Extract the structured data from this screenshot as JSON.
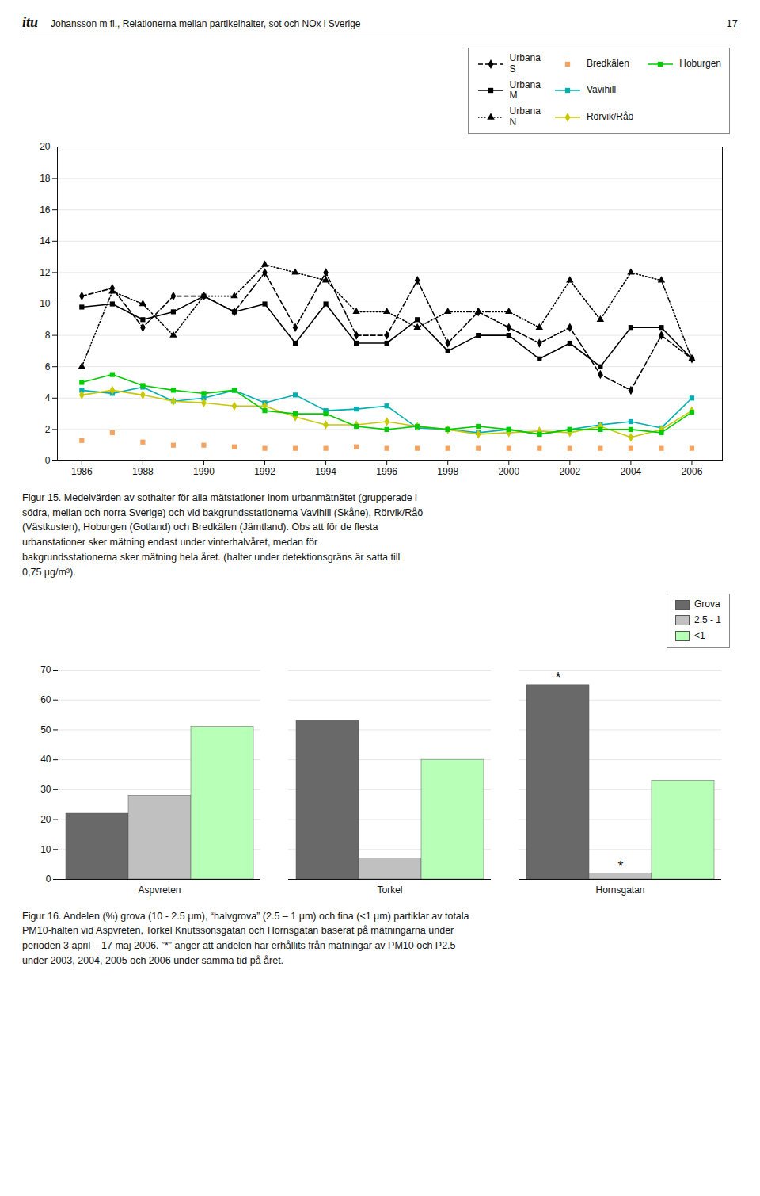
{
  "header": {
    "logo": "itu",
    "text": "Johansson m fl., Relationerna mellan partikelhalter, sot och NOx i Sverige",
    "page_number": "17"
  },
  "chart_data": [
    {
      "type": "line",
      "x": [
        1986,
        1987,
        1988,
        1989,
        1990,
        1991,
        1992,
        1993,
        1994,
        1995,
        1996,
        1997,
        1998,
        1999,
        2000,
        2001,
        2002,
        2003,
        2004,
        2005,
        2006
      ],
      "xlim": [
        1985.2,
        2007.0
      ],
      "xticks": [
        1986,
        1988,
        1990,
        1992,
        1994,
        1996,
        1998,
        2000,
        2002,
        2004,
        2006
      ],
      "ylim": [
        0,
        20
      ],
      "yticks": [
        0,
        2,
        4,
        6,
        8,
        10,
        12,
        14,
        16,
        18,
        20
      ],
      "grid": true,
      "legend": "upper right",
      "series": [
        {
          "name": "Urbana\nS",
          "color": "#000000",
          "marker": "diamond",
          "line_style": "dashed",
          "values": [
            10.5,
            11.0,
            8.5,
            10.5,
            10.5,
            9.5,
            12.0,
            8.5,
            12.0,
            8.0,
            8.0,
            11.5,
            7.5,
            9.5,
            8.5,
            7.5,
            8.5,
            5.5,
            4.5,
            8.0,
            6.5
          ]
        },
        {
          "name": "Urbana\nM",
          "color": "#000000",
          "marker": "square",
          "line_style": "solid",
          "values": [
            9.8,
            10.0,
            9.0,
            9.5,
            10.5,
            9.5,
            10.0,
            7.5,
            10.0,
            7.5,
            7.5,
            9.0,
            7.0,
            8.0,
            8.0,
            6.5,
            7.5,
            6.0,
            8.5,
            8.5,
            6.5
          ]
        },
        {
          "name": "Urbana\nN",
          "color": "#000000",
          "marker": "triangle",
          "line_style": "dotted",
          "values": [
            6.0,
            10.8,
            10.0,
            8.0,
            10.5,
            10.5,
            12.5,
            12.0,
            11.5,
            9.5,
            9.5,
            8.5,
            9.5,
            9.5,
            9.5,
            8.5,
            11.5,
            9.0,
            12.0,
            11.5,
            6.5
          ]
        },
        {
          "name": "Bredkälen",
          "color": "#f4a460",
          "marker": "square",
          "line_style": "none",
          "values": [
            1.3,
            1.8,
            1.2,
            1.0,
            1.0,
            0.9,
            0.8,
            0.8,
            0.8,
            0.9,
            0.8,
            0.8,
            0.8,
            0.8,
            0.8,
            0.8,
            0.8,
            0.8,
            0.8,
            0.8,
            0.8
          ]
        },
        {
          "name": "Vavihill",
          "color": "#00b0b0",
          "marker": "square",
          "line_style": "solid",
          "values": [
            4.5,
            4.3,
            4.7,
            3.8,
            4.0,
            4.5,
            3.7,
            4.2,
            3.2,
            3.3,
            3.5,
            2.1,
            2.0,
            1.8,
            2.0,
            1.7,
            2.0,
            2.3,
            2.5,
            2.1,
            4.0
          ]
        },
        {
          "name": "Rörvik/Råö",
          "color": "#c8c800",
          "marker": "diamond",
          "line_style": "solid",
          "values": [
            4.2,
            4.5,
            4.2,
            3.8,
            3.7,
            3.5,
            3.5,
            2.8,
            2.3,
            2.3,
            2.5,
            2.2,
            2.0,
            1.7,
            1.8,
            1.9,
            1.8,
            2.2,
            1.5,
            2.0,
            3.2
          ]
        },
        {
          "name": "Hoburgen",
          "color": "#00cc00",
          "marker": "square",
          "line_style": "solid",
          "values": [
            5.0,
            5.5,
            4.8,
            4.5,
            4.3,
            4.5,
            3.2,
            3.0,
            3.0,
            2.2,
            2.0,
            2.2,
            2.0,
            2.2,
            2.0,
            1.7,
            2.0,
            2.0,
            2.0,
            1.8,
            3.1
          ]
        }
      ],
      "caption": [
        "Figur 15. Medelvärden av sothalter för alla mätstationer inom urbanmätnätet (grupperade i",
        "södra, mellan och norra Sverige) och vid bakgrundsstationerna Vavihill (Skåne), Rörvik/Råö",
        "(Västkusten), Hoburgen (Gotland) och Bredkälen (Jämtland). Obs att för de flesta",
        "urbanstationer sker mätning endast under vinterhalvåret, medan för",
        "bakgrundsstationerna sker mätning hela året. (halter under detektionsgräns är satta till",
        "0,75 µg/m³)."
      ]
    },
    {
      "type": "bar",
      "categories": [
        "Aspvreten",
        "Torkel",
        "Hornsgatan"
      ],
      "ylim": [
        0,
        70
      ],
      "yticks": [
        0,
        10,
        20,
        30,
        40,
        50,
        60,
        70
      ],
      "grid": true,
      "legend": "upper right",
      "series": [
        {
          "name": "Grova",
          "color": "#696969",
          "values": [
            22,
            53,
            65
          ]
        },
        {
          "name": "2.5 - 1",
          "color": "#c0c0c0",
          "values": [
            28,
            7,
            2
          ]
        },
        {
          "name": "<1",
          "color": "#b8ffb8",
          "values": [
            51,
            40,
            33
          ]
        }
      ],
      "annotations": [
        {
          "text": "*",
          "category": "Hornsgatan",
          "series": "Grova"
        },
        {
          "text": "*",
          "category": "Hornsgatan",
          "series": "2.5 - 1"
        }
      ],
      "caption": [
        "Figur 16. Andelen (%) grova (10 - 2.5 μm), “halvgrova” (2.5 – 1 μm) och fina (<1 μm) partiklar av totala",
        "PM10-halten vid Aspvreten, Torkel Knutssonsgatan och Hornsgatan baserat på mätningarna under",
        "perioden 3 april – 17 maj 2006. ”*” anger att andelen har erhållits från mätningar av PM10 och P2.5",
        "under 2003, 2004, 2005 och 2006 under samma tid på året."
      ]
    }
  ]
}
